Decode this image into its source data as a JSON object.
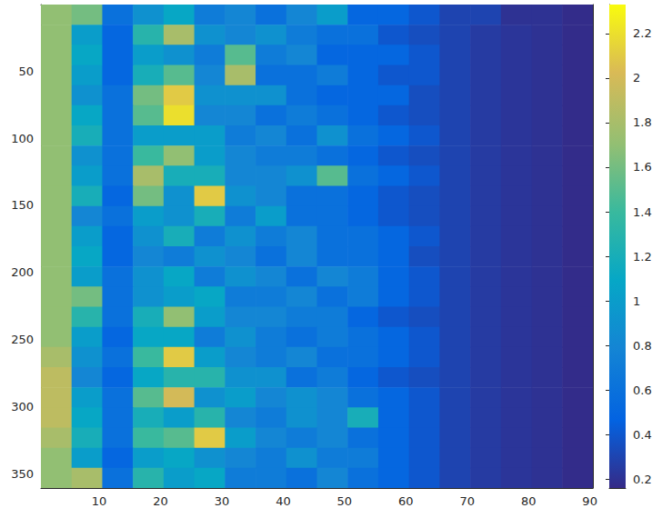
{
  "chart_data": {
    "type": "heatmap",
    "xlim": [
      0.5,
      90.5
    ],
    "xticks": [
      10,
      20,
      30,
      40,
      50,
      60,
      70,
      80,
      90
    ],
    "ylim": [
      0.5,
      360.5
    ],
    "yticks": [
      50,
      100,
      150,
      200,
      250,
      300,
      350
    ],
    "x_edges": [
      0.5,
      5.5,
      10.5,
      15.5,
      20.5,
      25.5,
      30.5,
      35.5,
      40.5,
      45.5,
      50.5,
      55.5,
      60.5,
      65.5,
      70.5,
      75.5,
      80.5,
      85.5,
      90.5
    ],
    "y_edges": [
      0.5,
      15.5,
      30.5,
      45.5,
      60.5,
      75.5,
      90.5,
      105.5,
      120.5,
      135.5,
      150.5,
      165.5,
      180.5,
      195.5,
      210.5,
      225.5,
      240.5,
      255.5,
      270.5,
      285.5,
      300.5,
      315.5,
      330.5,
      345.5,
      360.5
    ],
    "cells": [
      [
        1.7,
        1.6,
        0.6,
        0.9,
        1.1,
        0.7,
        0.8,
        0.6,
        0.8,
        1.0,
        0.5,
        0.5,
        0.4,
        0.3,
        0.3,
        0.2,
        0.2,
        0.17
      ],
      [
        1.7,
        1.0,
        0.5,
        1.3,
        1.8,
        0.9,
        0.8,
        0.9,
        0.7,
        0.6,
        0.6,
        0.4,
        0.35,
        0.3,
        0.25,
        0.22,
        0.2,
        0.17
      ],
      [
        1.7,
        1.1,
        0.5,
        1.0,
        0.9,
        0.7,
        1.5,
        0.7,
        0.8,
        0.5,
        0.5,
        0.5,
        0.4,
        0.3,
        0.25,
        0.22,
        0.2,
        0.17
      ],
      [
        1.7,
        1.0,
        0.5,
        1.2,
        1.5,
        0.8,
        1.8,
        0.6,
        0.6,
        0.7,
        0.5,
        0.4,
        0.4,
        0.3,
        0.25,
        0.22,
        0.2,
        0.17
      ],
      [
        1.7,
        0.9,
        0.6,
        1.6,
        2.1,
        0.9,
        0.9,
        0.9,
        0.6,
        0.5,
        0.5,
        0.5,
        0.35,
        0.3,
        0.25,
        0.22,
        0.2,
        0.17
      ],
      [
        1.7,
        1.1,
        0.6,
        1.5,
        2.2,
        0.8,
        0.8,
        0.6,
        0.7,
        0.6,
        0.5,
        0.4,
        0.35,
        0.3,
        0.25,
        0.22,
        0.2,
        0.17
      ],
      [
        1.7,
        1.2,
        0.6,
        1.0,
        1.0,
        1.0,
        0.7,
        0.8,
        0.6,
        0.9,
        0.6,
        0.5,
        0.4,
        0.3,
        0.25,
        0.22,
        0.2,
        0.17
      ],
      [
        1.7,
        0.9,
        0.6,
        1.4,
        1.7,
        1.0,
        0.8,
        0.7,
        0.7,
        0.6,
        0.5,
        0.4,
        0.35,
        0.3,
        0.25,
        0.22,
        0.2,
        0.17
      ],
      [
        1.7,
        1.0,
        0.6,
        1.8,
        1.2,
        1.2,
        0.8,
        0.8,
        0.9,
        1.5,
        0.6,
        0.5,
        0.4,
        0.3,
        0.25,
        0.22,
        0.2,
        0.17
      ],
      [
        1.7,
        1.2,
        0.5,
        1.6,
        0.9,
        2.1,
        0.9,
        0.8,
        0.6,
        0.6,
        0.5,
        0.4,
        0.35,
        0.3,
        0.25,
        0.22,
        0.2,
        0.17
      ],
      [
        1.7,
        0.8,
        0.6,
        1.0,
        0.9,
        1.2,
        0.7,
        1.0,
        0.6,
        0.6,
        0.5,
        0.4,
        0.35,
        0.3,
        0.25,
        0.22,
        0.2,
        0.17
      ],
      [
        1.7,
        1.0,
        0.5,
        0.9,
        1.2,
        0.7,
        0.9,
        0.7,
        0.8,
        0.6,
        0.6,
        0.5,
        0.4,
        0.3,
        0.25,
        0.22,
        0.2,
        0.17
      ],
      [
        1.7,
        1.1,
        0.5,
        0.8,
        0.7,
        0.9,
        0.8,
        0.6,
        0.8,
        0.6,
        0.6,
        0.5,
        0.35,
        0.3,
        0.25,
        0.22,
        0.2,
        0.17
      ],
      [
        1.7,
        1.0,
        0.6,
        0.9,
        1.1,
        0.7,
        0.9,
        0.8,
        0.6,
        0.8,
        0.7,
        0.5,
        0.4,
        0.3,
        0.25,
        0.22,
        0.2,
        0.17
      ],
      [
        1.7,
        1.6,
        0.6,
        0.9,
        1.0,
        1.1,
        0.7,
        0.7,
        0.8,
        0.6,
        0.7,
        0.5,
        0.4,
        0.3,
        0.25,
        0.22,
        0.2,
        0.17
      ],
      [
        1.7,
        1.3,
        0.6,
        1.2,
        1.7,
        1.0,
        0.8,
        0.8,
        0.7,
        0.7,
        0.5,
        0.4,
        0.35,
        0.3,
        0.25,
        0.22,
        0.2,
        0.17
      ],
      [
        1.7,
        1.0,
        0.5,
        1.1,
        1.1,
        0.7,
        0.9,
        0.7,
        0.6,
        0.7,
        0.6,
        0.5,
        0.4,
        0.3,
        0.25,
        0.22,
        0.2,
        0.17
      ],
      [
        1.8,
        0.9,
        0.6,
        1.4,
        2.1,
        1.0,
        0.8,
        0.7,
        0.8,
        0.6,
        0.6,
        0.5,
        0.4,
        0.3,
        0.25,
        0.22,
        0.2,
        0.17
      ],
      [
        1.9,
        0.8,
        0.5,
        1.1,
        1.3,
        1.3,
        0.9,
        0.9,
        0.6,
        0.7,
        0.5,
        0.4,
        0.35,
        0.3,
        0.25,
        0.22,
        0.2,
        0.17
      ],
      [
        1.9,
        1.0,
        0.6,
        1.5,
        2.0,
        0.9,
        1.0,
        0.8,
        0.9,
        0.8,
        0.6,
        0.5,
        0.4,
        0.3,
        0.25,
        0.22,
        0.2,
        0.17
      ],
      [
        1.9,
        1.1,
        0.6,
        1.2,
        1.0,
        1.3,
        0.8,
        0.7,
        0.9,
        0.8,
        1.2,
        0.5,
        0.4,
        0.3,
        0.25,
        0.22,
        0.2,
        0.17
      ],
      [
        1.8,
        1.2,
        0.6,
        1.4,
        1.5,
        2.1,
        1.0,
        0.8,
        0.7,
        0.8,
        0.6,
        0.5,
        0.4,
        0.3,
        0.25,
        0.22,
        0.2,
        0.17
      ],
      [
        1.7,
        1.0,
        0.5,
        1.0,
        1.1,
        0.9,
        0.8,
        0.7,
        0.9,
        0.7,
        0.7,
        0.5,
        0.4,
        0.3,
        0.25,
        0.22,
        0.2,
        0.17
      ],
      [
        1.7,
        1.8,
        0.6,
        1.3,
        1.0,
        1.1,
        0.7,
        0.7,
        0.6,
        0.8,
        0.6,
        0.5,
        0.4,
        0.3,
        0.25,
        0.22,
        0.2,
        0.17
      ]
    ],
    "colorbar": {
      "range": [
        0.16,
        2.33
      ],
      "ticks": [
        0.2,
        0.4,
        0.6,
        0.8,
        1,
        1.2,
        1.4,
        1.6,
        1.8,
        2,
        2.2
      ]
    }
  }
}
